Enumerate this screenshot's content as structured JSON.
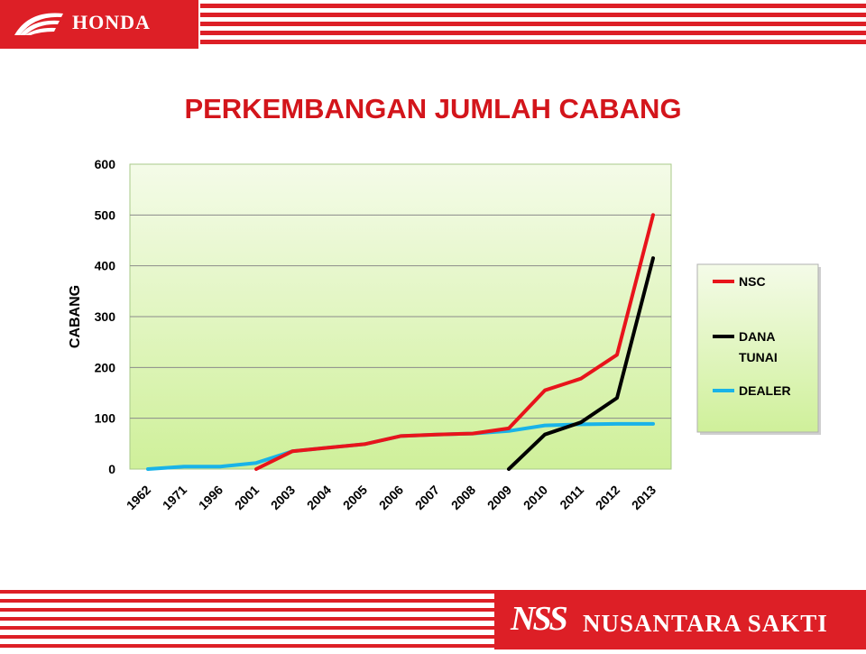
{
  "header": {
    "brand": "HONDA"
  },
  "slide": {
    "title": "PERKEMBANGAN JUMLAH CABANG"
  },
  "footer": {
    "brand_mark": "NSS",
    "company": "NUSANTARA SAKTI"
  },
  "colors": {
    "brand_red": "#dd1f26",
    "title_red": "#d3151b",
    "nsc": "#e8141b",
    "dana_tunai": "#000000",
    "dealer": "#19b3e8",
    "plot_bg_top": "#f4fbe8",
    "plot_bg_bottom": "#cff09a"
  },
  "icons": {
    "header": "honda-wing-logo",
    "footer": "nss-logo"
  },
  "chart_data": {
    "type": "line",
    "title": "PERKEMBANGAN JUMLAH CABANG",
    "xlabel": "",
    "ylabel": "CABANG",
    "ylim": [
      0,
      600
    ],
    "yticks": [
      0,
      100,
      200,
      300,
      400,
      500,
      600
    ],
    "grid": true,
    "legend_position": "right",
    "categories": [
      "1962",
      "1971",
      "1996",
      "2001",
      "2003",
      "2004",
      "2005",
      "2006",
      "2007",
      "2008",
      "2009",
      "2010",
      "2011",
      "2012",
      "2013"
    ],
    "series": [
      {
        "name": "NSC",
        "color": "#e8141b",
        "values": [
          null,
          null,
          null,
          0,
          35,
          42,
          49,
          65,
          68,
          70,
          80,
          155,
          178,
          225,
          500
        ]
      },
      {
        "name": "DANA TUNAI",
        "color": "#000000",
        "values": [
          null,
          null,
          null,
          null,
          null,
          null,
          null,
          null,
          null,
          null,
          0,
          68,
          92,
          140,
          415
        ]
      },
      {
        "name": "DEALER",
        "color": "#19b3e8",
        "values": [
          0,
          5,
          5,
          12,
          35,
          42,
          49,
          65,
          68,
          70,
          75,
          86,
          88,
          89,
          89
        ]
      }
    ]
  }
}
